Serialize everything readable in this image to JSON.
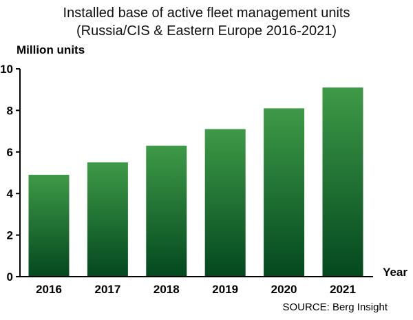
{
  "chart_data": {
    "type": "bar",
    "title": "Installed base of active fleet management units",
    "subtitle": "(Russia/CIS & Eastern Europe 2016-2021)",
    "ylabel": "Million units",
    "xlabel": "Year",
    "categories": [
      "2016",
      "2017",
      "2018",
      "2019",
      "2020",
      "2021"
    ],
    "values": [
      4.9,
      5.5,
      6.3,
      7.1,
      8.1,
      9.1
    ],
    "ylim": [
      0,
      10
    ],
    "yticks": [
      "0",
      "2",
      "4",
      "6",
      "8",
      "10"
    ],
    "grid": false,
    "legend": "none",
    "source": "SOURCE: Berg Insight",
    "colors": {
      "bar_top": "#3e9a47",
      "bar_bottom": "#03481f",
      "axis": "#000000"
    }
  }
}
